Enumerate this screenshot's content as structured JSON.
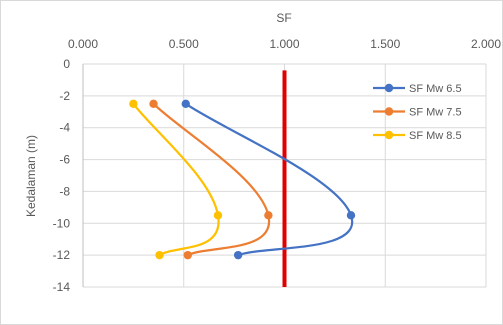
{
  "chart_data": {
    "type": "line",
    "title": "",
    "xlabel": "SF",
    "ylabel": "Kedalaman (m)",
    "xlim": [
      0,
      2
    ],
    "ylim": [
      -14,
      0
    ],
    "x_ticks": [
      "0.000",
      "0.500",
      "1.000",
      "1.500",
      "2.000"
    ],
    "x_tick_values": [
      0,
      0.5,
      1,
      1.5,
      2
    ],
    "y_ticks": [
      "0",
      "-2",
      "-4",
      "-6",
      "-8",
      "-10",
      "-12",
      "-14"
    ],
    "y_tick_values": [
      0,
      -2,
      -4,
      -6,
      -8,
      -10,
      -12,
      -14
    ],
    "x_axis_position": "top",
    "grid": {
      "horizontal": true,
      "vertical": true
    },
    "legend_position": "right",
    "series": [
      {
        "name": "SF Mw 6.5",
        "color": "#4472C4",
        "points": [
          {
            "x": 0.51,
            "y": -2.5
          },
          {
            "x": 1.33,
            "y": -9.5
          },
          {
            "x": 0.77,
            "y": -12.0
          }
        ]
      },
      {
        "name": "SF Mw 7.5",
        "color": "#ED7D31",
        "points": [
          {
            "x": 0.35,
            "y": -2.5
          },
          {
            "x": 0.92,
            "y": -9.5
          },
          {
            "x": 0.52,
            "y": -12.0
          }
        ]
      },
      {
        "name": "SF Mw 8.5",
        "color": "#FFC000",
        "points": [
          {
            "x": 0.25,
            "y": -2.5
          },
          {
            "x": 0.67,
            "y": -9.5
          },
          {
            "x": 0.38,
            "y": -12.0
          }
        ]
      }
    ],
    "reference_line": {
      "x": 1.0,
      "y_range": [
        -0.4,
        -14
      ],
      "color": "#E00000"
    }
  }
}
